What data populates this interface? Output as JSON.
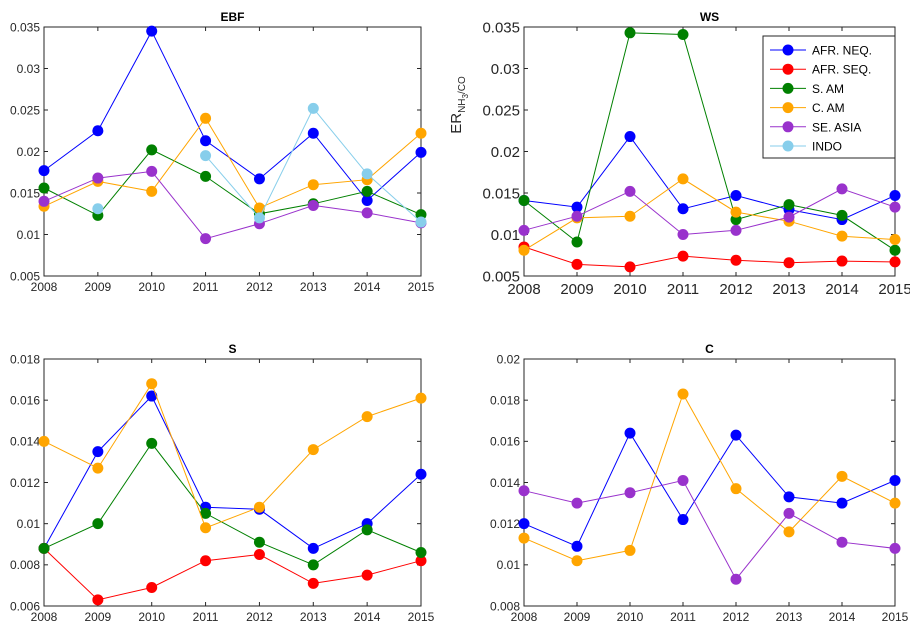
{
  "colors": {
    "AFR. NEQ.": "#0000ff",
    "AFR. SEQ.": "#ff0000",
    "S. AM": "#008000",
    "C. AM": "#ffa500",
    "SE. ASIA": "#9932cc",
    "INDO": "#87ceeb"
  },
  "legend": [
    "AFR. NEQ.",
    "AFR. SEQ.",
    "S. AM",
    "C. AM",
    "SE. ASIA",
    "INDO"
  ],
  "ylabel": {
    "main": "ER",
    "sub_a": "NH",
    "sub_b": "3",
    "sub_c": "/CO"
  },
  "chart_data": [
    {
      "type": "line",
      "title": "EBF",
      "x": [
        2008,
        2009,
        2010,
        2011,
        2012,
        2013,
        2014,
        2015
      ],
      "xticks": [
        "2008",
        "2009",
        "2010",
        "2011",
        "2012",
        "2013",
        "2014",
        "2015"
      ],
      "ylim": [
        0.005,
        0.035
      ],
      "yticks": [
        "0.005",
        "0.01",
        "0.015",
        "0.02",
        "0.025",
        "0.03",
        "0.035"
      ],
      "series": [
        {
          "name": "AFR. NEQ.",
          "values": [
            0.0177,
            0.0225,
            0.0345,
            0.0213,
            0.0167,
            0.0222,
            0.0141,
            0.0199
          ]
        },
        {
          "name": "S. AM",
          "values": [
            0.0156,
            0.0123,
            0.0202,
            0.017,
            0.0125,
            0.0137,
            0.0152,
            0.0124
          ]
        },
        {
          "name": "C. AM",
          "values": [
            0.0134,
            0.0164,
            0.0152,
            0.024,
            0.0132,
            0.016,
            0.0166,
            0.0222
          ]
        },
        {
          "name": "SE. ASIA",
          "values": [
            0.014,
            0.0168,
            0.0176,
            0.0095,
            0.0113,
            0.0135,
            0.0126,
            0.0114
          ]
        },
        {
          "name": "INDO",
          "values": [
            null,
            0.0131,
            null,
            0.0195,
            0.012,
            0.0252,
            0.0173,
            0.0115
          ]
        }
      ]
    },
    {
      "type": "line",
      "title": "WS",
      "x": [
        2008,
        2009,
        2010,
        2011,
        2012,
        2013,
        2014,
        2015
      ],
      "xticks": [
        "2008",
        "2009",
        "2010",
        "2011",
        "2012",
        "2013",
        "2014",
        "2015"
      ],
      "ylim": [
        0.005,
        0.035
      ],
      "yticks": [
        "0.005",
        "0.01",
        "0.015",
        "0.02",
        "0.025",
        "0.03",
        "0.035"
      ],
      "series": [
        {
          "name": "AFR. NEQ.",
          "values": [
            0.0141,
            0.0133,
            0.0218,
            0.0131,
            0.0147,
            0.013,
            0.0118,
            0.0147
          ]
        },
        {
          "name": "AFR. SEQ.",
          "values": [
            0.0085,
            0.0064,
            0.0061,
            0.0074,
            0.0069,
            0.0066,
            0.0068,
            0.0067
          ]
        },
        {
          "name": "S. AM",
          "values": [
            0.0141,
            0.0091,
            0.0343,
            0.0341,
            0.0118,
            0.0136,
            0.0123,
            0.0081
          ]
        },
        {
          "name": "C. AM",
          "values": [
            0.0081,
            0.012,
            0.0122,
            0.0167,
            0.0127,
            0.0116,
            0.0098,
            0.0094
          ]
        },
        {
          "name": "SE. ASIA",
          "values": [
            0.0105,
            0.0122,
            0.0152,
            0.01,
            0.0105,
            0.0121,
            0.0155,
            0.0133
          ]
        }
      ]
    },
    {
      "type": "line",
      "title": "S",
      "x": [
        2008,
        2009,
        2010,
        2011,
        2012,
        2013,
        2014,
        2015
      ],
      "xticks": [
        "2008",
        "2009",
        "2010",
        "2011",
        "2012",
        "2013",
        "2014",
        "2015"
      ],
      "ylim": [
        0.006,
        0.018
      ],
      "yticks": [
        "0.006",
        "0.008",
        "0.01",
        "0.012",
        "0.014",
        "0.016",
        "0.018"
      ],
      "series": [
        {
          "name": "AFR. NEQ.",
          "values": [
            0.0088,
            0.0135,
            0.0162,
            0.0108,
            0.0107,
            0.0088,
            0.01,
            0.0124
          ]
        },
        {
          "name": "AFR. SEQ.",
          "values": [
            0.0088,
            0.0063,
            0.0069,
            0.0082,
            0.0085,
            0.0071,
            0.0075,
            0.0082
          ]
        },
        {
          "name": "S. AM",
          "values": [
            0.0088,
            0.01,
            0.0139,
            0.0105,
            0.0091,
            0.008,
            0.0097,
            0.0086
          ]
        },
        {
          "name": "C. AM",
          "values": [
            0.014,
            0.0127,
            0.0168,
            0.0098,
            0.0108,
            0.0136,
            0.0152,
            0.0161
          ]
        }
      ]
    },
    {
      "type": "line",
      "title": "C",
      "x": [
        2008,
        2009,
        2010,
        2011,
        2012,
        2013,
        2014,
        2015
      ],
      "xticks": [
        "2008",
        "2009",
        "2010",
        "2011",
        "2012",
        "2013",
        "2014",
        "2015"
      ],
      "ylim": [
        0.008,
        0.02
      ],
      "yticks": [
        "0.008",
        "0.01",
        "0.012",
        "0.014",
        "0.016",
        "0.018",
        "0.02"
      ],
      "series": [
        {
          "name": "AFR. NEQ.",
          "values": [
            0.012,
            0.0109,
            0.0164,
            0.0122,
            0.0163,
            0.0133,
            0.013,
            0.0141
          ]
        },
        {
          "name": "C. AM",
          "values": [
            0.0113,
            0.0102,
            0.0107,
            0.0183,
            0.0137,
            0.0116,
            0.0143,
            0.013
          ]
        },
        {
          "name": "SE. ASIA",
          "values": [
            0.0136,
            0.013,
            0.0135,
            0.0141,
            0.0093,
            0.0125,
            0.0111,
            0.0108
          ]
        }
      ]
    }
  ]
}
